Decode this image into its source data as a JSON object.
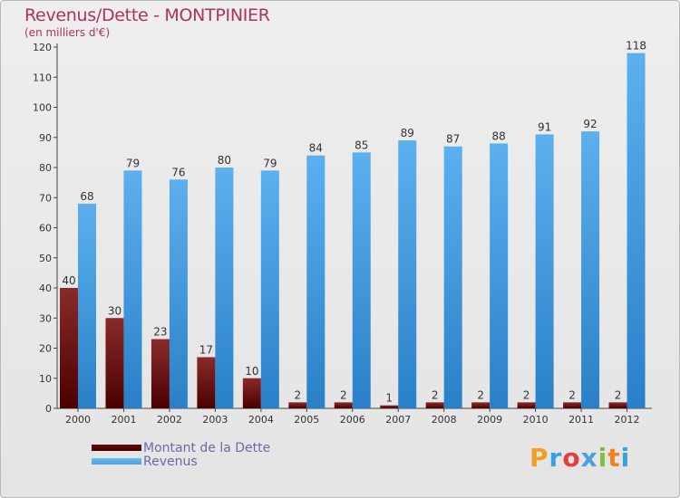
{
  "header": {
    "title": "Revenus/Dette - MONTPINIER",
    "subtitle": "(en milliers d'€)"
  },
  "chart_data": {
    "type": "bar",
    "title": "Revenus/Dette - MONTPINIER",
    "ylabel": "(en milliers d'€)",
    "xlabel": "",
    "categories": [
      "2000",
      "2001",
      "2002",
      "2003",
      "2004",
      "2005",
      "2006",
      "2007",
      "2008",
      "2009",
      "2010",
      "2011",
      "2012"
    ],
    "series": [
      {
        "name": "Montant de la Dette",
        "color": "#6b0a0a",
        "values": [
          40,
          30,
          23,
          17,
          10,
          2,
          2,
          1,
          2,
          2,
          2,
          2,
          2
        ]
      },
      {
        "name": "Revenus",
        "color": "#4aa0e0",
        "values": [
          68,
          79,
          76,
          80,
          79,
          84,
          85,
          89,
          87,
          88,
          91,
          92,
          118
        ]
      }
    ],
    "ylim": [
      0,
      120
    ],
    "yticks": [
      0,
      10,
      20,
      30,
      40,
      50,
      60,
      70,
      80,
      90,
      100,
      110,
      120
    ],
    "grid": false,
    "legend": "bottom-left"
  },
  "legend": {
    "items": [
      {
        "label": "Montant de la Dette",
        "color": "#6b0a0a"
      },
      {
        "label": "Revenus",
        "color": "#4aa0e0"
      }
    ]
  },
  "logo": {
    "text": "Proxiti",
    "letters": [
      "P",
      "r",
      "o",
      "x",
      "i",
      "t",
      "i"
    ],
    "colors": [
      "#f0a020",
      "#3aa0e0",
      "#e04040",
      "#4aa0e0",
      "#80c040",
      "#f08020",
      "#3aa0e0"
    ]
  }
}
